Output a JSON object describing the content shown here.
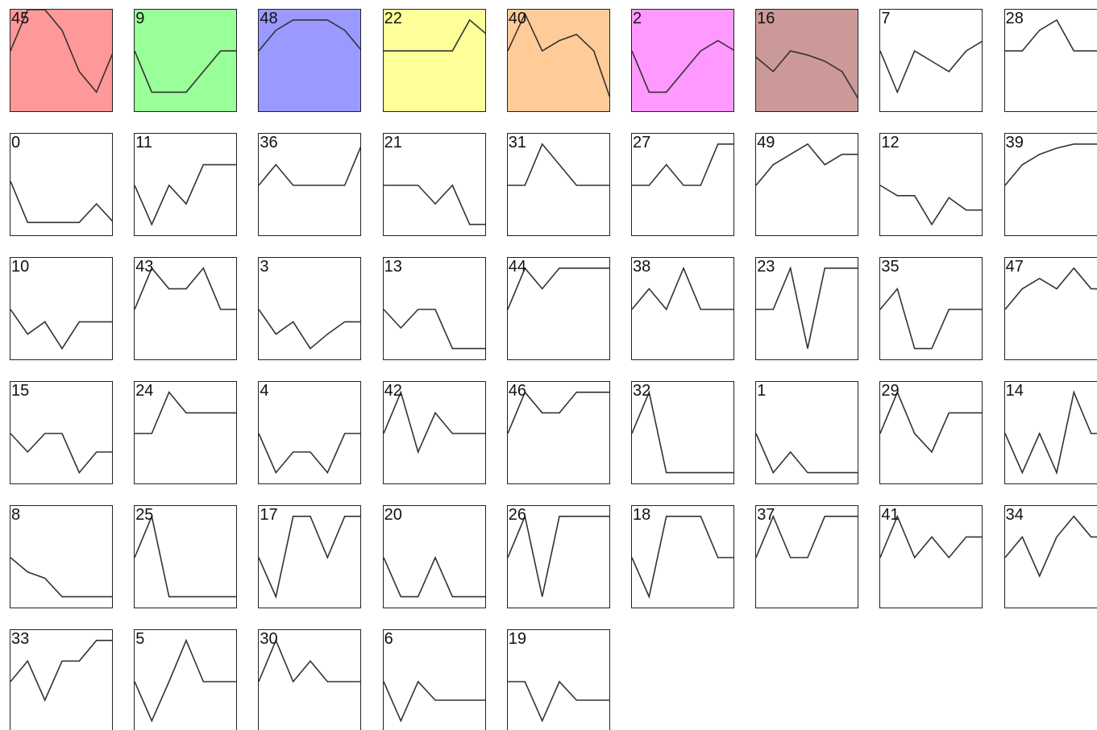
{
  "chart_data": {
    "type": "line",
    "y_range": [
      0,
      5
    ],
    "x_points": 7,
    "panels": [
      {
        "label": "45",
        "highlight": "#ff9999",
        "values": [
          3,
          5,
          5,
          4,
          2,
          1,
          3
        ]
      },
      {
        "label": "9",
        "highlight": "#99ff99",
        "values": [
          3,
          1,
          1,
          1,
          2,
          3,
          3
        ]
      },
      {
        "label": "48",
        "highlight": "#9999ff",
        "values": [
          3,
          4,
          4.5,
          4.5,
          4.5,
          4,
          3
        ]
      },
      {
        "label": "22",
        "highlight": "#ffff99",
        "values": [
          3,
          3,
          3,
          3,
          3,
          4.5,
          3.8
        ]
      },
      {
        "label": "40",
        "highlight": "#ffcc99",
        "values": [
          3,
          4.8,
          3,
          3.5,
          3.8,
          3,
          0.6
        ]
      },
      {
        "label": "2",
        "highlight": "#ff99ff",
        "values": [
          3,
          1,
          1,
          2,
          3,
          3.5,
          3
        ]
      },
      {
        "label": "16",
        "highlight": "#cc9999",
        "values": [
          2.7,
          2,
          3,
          2.8,
          2.5,
          2,
          0.6
        ]
      },
      {
        "label": "7",
        "highlight": "",
        "values": [
          3,
          1,
          3,
          2.5,
          2,
          3,
          3.5
        ]
      },
      {
        "label": "28",
        "highlight": "",
        "values": [
          3,
          3,
          4,
          4.5,
          3,
          3,
          3
        ]
      },
      {
        "label": "0",
        "highlight": "",
        "values": [
          2.7,
          0.7,
          0.7,
          0.7,
          0.7,
          1.6,
          0.7
        ]
      },
      {
        "label": "11",
        "highlight": "",
        "values": [
          2.5,
          0.6,
          2.5,
          1.6,
          3.5,
          3.5,
          3.5
        ]
      },
      {
        "label": "36",
        "highlight": "",
        "values": [
          2.5,
          3.5,
          2.5,
          2.5,
          2.5,
          2.5,
          4.5
        ]
      },
      {
        "label": "21",
        "highlight": "",
        "values": [
          2.5,
          2.5,
          2.5,
          1.6,
          2.5,
          0.6,
          0.6
        ]
      },
      {
        "label": "31",
        "highlight": "",
        "values": [
          2.5,
          2.5,
          4.5,
          3.5,
          2.5,
          2.5,
          2.5
        ]
      },
      {
        "label": "27",
        "highlight": "",
        "values": [
          2.5,
          2.5,
          3.5,
          2.5,
          2.5,
          4.5,
          4.5
        ]
      },
      {
        "label": "49",
        "highlight": "",
        "values": [
          2.5,
          3.5,
          4,
          4.5,
          3.5,
          4,
          4
        ]
      },
      {
        "label": "12",
        "highlight": "",
        "values": [
          2.5,
          2,
          2,
          0.6,
          1.9,
          1.3,
          1.3
        ]
      },
      {
        "label": "39",
        "highlight": "",
        "values": [
          2.5,
          3.5,
          4,
          4.3,
          4.5,
          4.5,
          4.5
        ]
      },
      {
        "label": "10",
        "highlight": "",
        "values": [
          2.5,
          1.3,
          1.9,
          0.6,
          1.9,
          1.9,
          1.9
        ]
      },
      {
        "label": "43",
        "highlight": "",
        "values": [
          2.5,
          4.5,
          3.5,
          3.5,
          4.5,
          2.5,
          2.5
        ]
      },
      {
        "label": "3",
        "highlight": "",
        "values": [
          2.5,
          1.3,
          1.9,
          0.6,
          1.3,
          1.9,
          1.9
        ]
      },
      {
        "label": "13",
        "highlight": "",
        "values": [
          2.5,
          1.6,
          2.5,
          2.5,
          0.6,
          0.6,
          0.6
        ]
      },
      {
        "label": "44",
        "highlight": "",
        "values": [
          2.5,
          4.5,
          3.5,
          4.5,
          4.5,
          4.5,
          4.5
        ]
      },
      {
        "label": "38",
        "highlight": "",
        "values": [
          2.5,
          3.5,
          2.5,
          4.5,
          2.5,
          2.5,
          2.5
        ]
      },
      {
        "label": "23",
        "highlight": "",
        "values": [
          2.5,
          2.5,
          4.5,
          0.6,
          4.5,
          4.5,
          4.5
        ]
      },
      {
        "label": "35",
        "highlight": "",
        "values": [
          2.5,
          3.5,
          0.6,
          0.6,
          2.5,
          2.5,
          2.5
        ]
      },
      {
        "label": "47",
        "highlight": "",
        "values": [
          2.5,
          3.5,
          4,
          3.5,
          4.5,
          3.5,
          3.5
        ]
      },
      {
        "label": "15",
        "highlight": "",
        "values": [
          2.5,
          1.6,
          2.5,
          2.5,
          0.6,
          1.6,
          1.6
        ]
      },
      {
        "label": "24",
        "highlight": "",
        "values": [
          2.5,
          2.5,
          4.5,
          3.5,
          3.5,
          3.5,
          3.5
        ]
      },
      {
        "label": "4",
        "highlight": "",
        "values": [
          2.5,
          0.6,
          1.6,
          1.6,
          0.6,
          2.5,
          2.5
        ]
      },
      {
        "label": "42",
        "highlight": "",
        "values": [
          2.5,
          4.5,
          1.6,
          3.5,
          2.5,
          2.5,
          2.5
        ]
      },
      {
        "label": "46",
        "highlight": "",
        "values": [
          2.5,
          4.5,
          3.5,
          3.5,
          4.5,
          4.5,
          4.5
        ]
      },
      {
        "label": "32",
        "highlight": "",
        "values": [
          2.5,
          4.5,
          0.6,
          0.6,
          0.6,
          0.6,
          0.6
        ]
      },
      {
        "label": "1",
        "highlight": "",
        "values": [
          2.5,
          0.6,
          1.6,
          0.6,
          0.6,
          0.6,
          0.6
        ]
      },
      {
        "label": "29",
        "highlight": "",
        "values": [
          2.5,
          4.5,
          2.5,
          1.6,
          3.5,
          3.5,
          3.5
        ]
      },
      {
        "label": "14",
        "highlight": "",
        "values": [
          2.5,
          0.6,
          2.5,
          0.6,
          4.5,
          2.5,
          2.5
        ]
      },
      {
        "label": "8",
        "highlight": "",
        "values": [
          2.5,
          1.8,
          1.5,
          0.6,
          0.6,
          0.6,
          0.6
        ]
      },
      {
        "label": "25",
        "highlight": "",
        "values": [
          2.5,
          4.5,
          0.6,
          0.6,
          0.6,
          0.6,
          0.6
        ]
      },
      {
        "label": "17",
        "highlight": "",
        "values": [
          2.5,
          0.6,
          4.5,
          4.5,
          2.5,
          4.5,
          4.5
        ]
      },
      {
        "label": "20",
        "highlight": "",
        "values": [
          2.5,
          0.6,
          0.6,
          2.5,
          0.6,
          0.6,
          0.6
        ]
      },
      {
        "label": "26",
        "highlight": "",
        "values": [
          2.5,
          4.5,
          0.6,
          4.5,
          4.5,
          4.5,
          4.5
        ]
      },
      {
        "label": "18",
        "highlight": "",
        "values": [
          2.5,
          0.6,
          4.5,
          4.5,
          4.5,
          2.5,
          2.5
        ]
      },
      {
        "label": "37",
        "highlight": "",
        "values": [
          2.5,
          4.5,
          2.5,
          2.5,
          4.5,
          4.5,
          4.5
        ]
      },
      {
        "label": "41",
        "highlight": "",
        "values": [
          2.5,
          4.5,
          2.5,
          3.5,
          2.5,
          3.5,
          3.5
        ]
      },
      {
        "label": "34",
        "highlight": "",
        "values": [
          2.5,
          3.5,
          1.6,
          3.5,
          4.5,
          3.5,
          3.5
        ]
      },
      {
        "label": "33",
        "highlight": "",
        "values": [
          2.5,
          3.5,
          1.6,
          3.5,
          3.5,
          4.5,
          4.5
        ]
      },
      {
        "label": "5",
        "highlight": "",
        "values": [
          2.5,
          0.6,
          2.5,
          4.5,
          2.5,
          2.5,
          2.5
        ]
      },
      {
        "label": "30",
        "highlight": "",
        "values": [
          2.5,
          4.5,
          2.5,
          3.5,
          2.5,
          2.5,
          2.5
        ]
      },
      {
        "label": "6",
        "highlight": "",
        "values": [
          2.5,
          0.6,
          2.5,
          1.6,
          1.6,
          1.6,
          1.6
        ]
      },
      {
        "label": "19",
        "highlight": "",
        "values": [
          2.5,
          2.5,
          0.6,
          2.5,
          1.6,
          1.6,
          1.6
        ]
      }
    ]
  }
}
